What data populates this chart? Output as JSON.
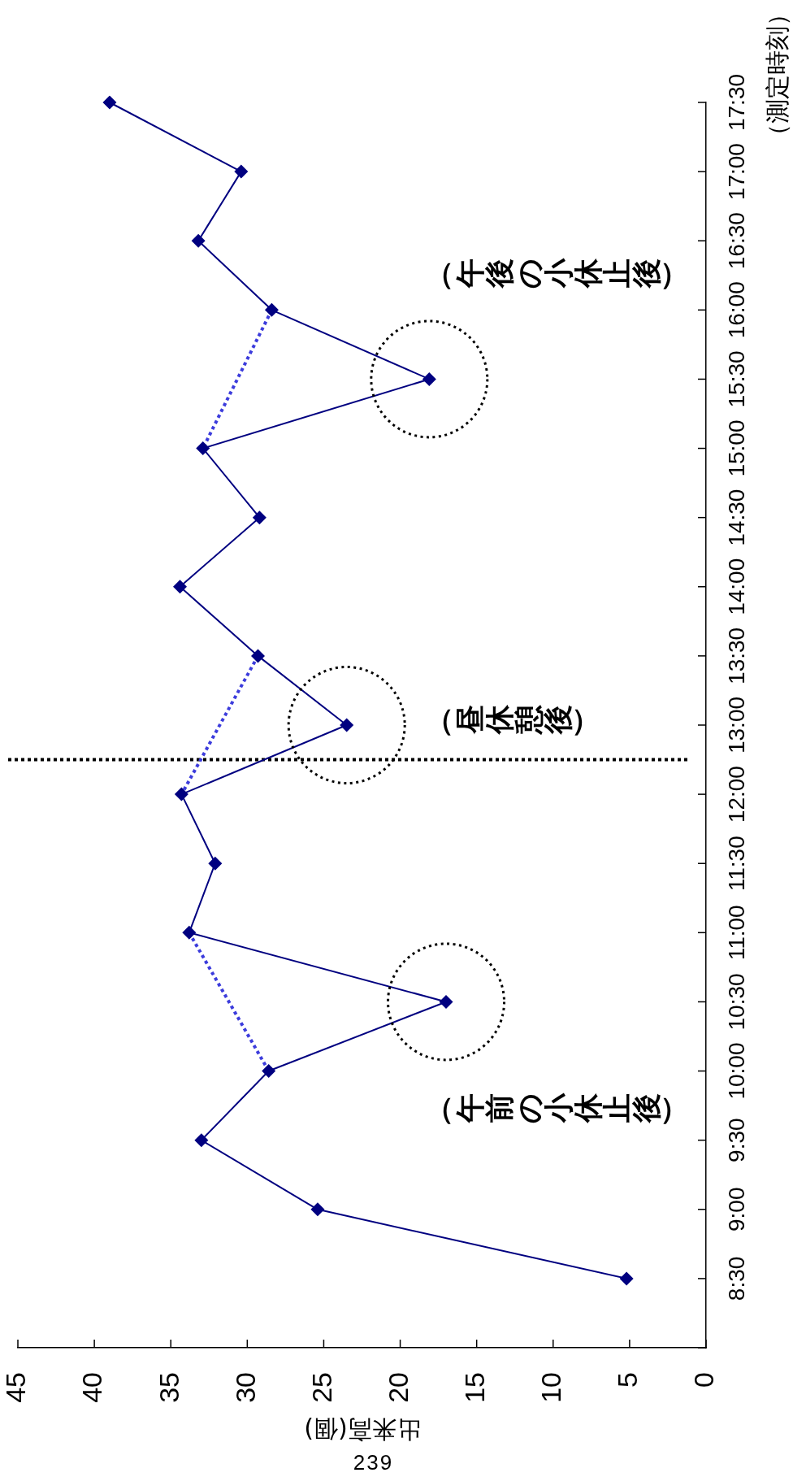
{
  "chart_data": {
    "type": "line",
    "orientation": "horizontal",
    "xlabel": "出来高(個)",
    "ylabel": "（測定時刻）",
    "categories": [
      "17:30",
      "17:00",
      "16:30",
      "16:00",
      "15:30",
      "15:00",
      "14:30",
      "14:00",
      "13:30",
      "13:00",
      "12:00",
      "11:30",
      "11:00",
      "10:30",
      "10:00",
      "9:30",
      "9:00",
      "8:30",
      null
    ],
    "series": [
      {
        "color": "#000080",
        "values": [
          39.0,
          30.4,
          33.2,
          28.4,
          18.1,
          32.9,
          29.2,
          34.4,
          29.3,
          23.5,
          34.3,
          32.1,
          33.8,
          17.0,
          28.6,
          33.0,
          25.4,
          5.2,
          null
        ]
      },
      {
        "color": "#3c3cdc",
        "line_style": "dotted",
        "marker": "none",
        "x": [
          "16:00",
          "15:00"
        ],
        "values": [
          28.4,
          32.9
        ]
      },
      {
        "color": "#3c3cdc",
        "line_style": "dotted",
        "marker": "none",
        "x": [
          "13:30",
          "12:00"
        ],
        "values": [
          29.3,
          34.3
        ]
      },
      {
        "color": "#3c3cdc",
        "line_style": "dotted",
        "marker": "none",
        "x": [
          "11:00",
          "10:00"
        ],
        "values": [
          33.8,
          28.6
        ]
      }
    ],
    "marker": "diamond",
    "xlim": [
      45,
      0
    ],
    "xticks": [
      0,
      5,
      10,
      15,
      20,
      25,
      30,
      35,
      40,
      45
    ],
    "annotations": [
      "（午後の小休止後）",
      "（昼休憩後）",
      "（午前の小休止後）",
      "239"
    ]
  }
}
